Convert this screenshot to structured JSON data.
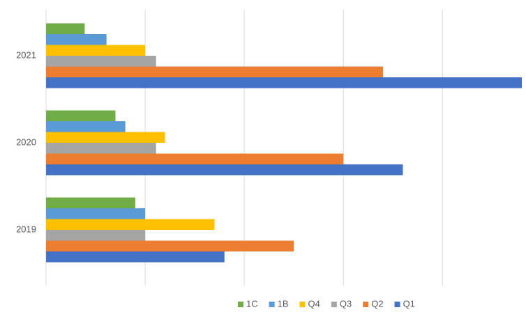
{
  "chart_data": {
    "type": "hbar",
    "categories": [
      "2019",
      "2020",
      "2021"
    ],
    "series": [
      {
        "name": "1C",
        "color": "#70ad47",
        "values": [
          9,
          7,
          3.9
        ]
      },
      {
        "name": "1B",
        "color": "#5b9bd5",
        "values": [
          10,
          8,
          6.1
        ]
      },
      {
        "name": "Q4",
        "color": "#ffc000",
        "values": [
          17,
          12,
          10
        ]
      },
      {
        "name": "Q3",
        "color": "#a5a5a5",
        "values": [
          10,
          11.1,
          11.1
        ]
      },
      {
        "name": "Q2",
        "color": "#ed7d31",
        "values": [
          25,
          30,
          34
        ]
      },
      {
        "name": "Q1",
        "color": "#4472c4",
        "values": [
          18,
          36,
          48
        ]
      }
    ],
    "xlim": [
      0,
      48
    ],
    "xticks": [
      0,
      10,
      20,
      30,
      40
    ],
    "grid": true,
    "legend": "bottom"
  }
}
